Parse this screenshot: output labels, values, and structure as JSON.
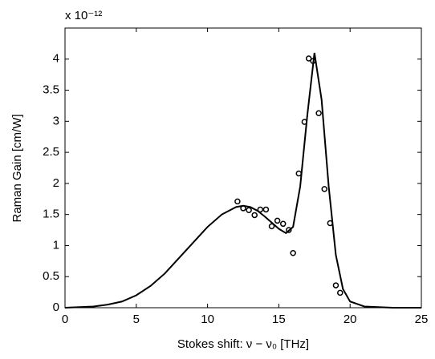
{
  "chart_data": {
    "type": "line",
    "multiplier": "x 10⁻¹²",
    "xlabel": "Stokes shift: ν − ν₀ [THz]",
    "ylabel": "Raman Gain [cm/W]",
    "xlim": [
      0,
      25
    ],
    "xticks": [
      0,
      5,
      10,
      15,
      20,
      25
    ],
    "ylim": [
      0,
      4.5
    ],
    "yticks": [
      0,
      0.5,
      1,
      1.5,
      2,
      2.5,
      3,
      3.5,
      4
    ],
    "grid": false,
    "series": [
      {
        "type": "line",
        "color": "#000000",
        "x": [
          0,
          1,
          2,
          3,
          4,
          5,
          6,
          7,
          8,
          9,
          10,
          11,
          12,
          12.5,
          13,
          13.5,
          14,
          14.5,
          15,
          15.5,
          16,
          16.5,
          17,
          17.5,
          18,
          18.5,
          19,
          19.5,
          20,
          21,
          22,
          23,
          24,
          25
        ],
        "values": [
          0,
          0.01,
          0.02,
          0.05,
          0.1,
          0.2,
          0.35,
          0.55,
          0.8,
          1.05,
          1.3,
          1.5,
          1.62,
          1.64,
          1.62,
          1.56,
          1.47,
          1.37,
          1.27,
          1.2,
          1.3,
          1.95,
          3.1,
          4.1,
          3.35,
          1.95,
          0.85,
          0.3,
          0.1,
          0.02,
          0.01,
          0,
          0,
          0
        ]
      },
      {
        "type": "scatter",
        "color": "#000000",
        "x": [
          12.1,
          12.5,
          12.9,
          13.3,
          13.7,
          14.1,
          14.5,
          14.9,
          15.3,
          15.7,
          16.0,
          16.4,
          16.8,
          17.1,
          17.4,
          17.8,
          18.2,
          18.6,
          19.0,
          19.3
        ],
        "values": [
          1.71,
          1.6,
          1.57,
          1.49,
          1.58,
          1.58,
          1.31,
          1.4,
          1.35,
          1.25,
          0.88,
          2.16,
          2.99,
          4.01,
          3.97,
          3.13,
          1.91,
          1.36,
          0.36,
          0.24
        ]
      }
    ]
  }
}
